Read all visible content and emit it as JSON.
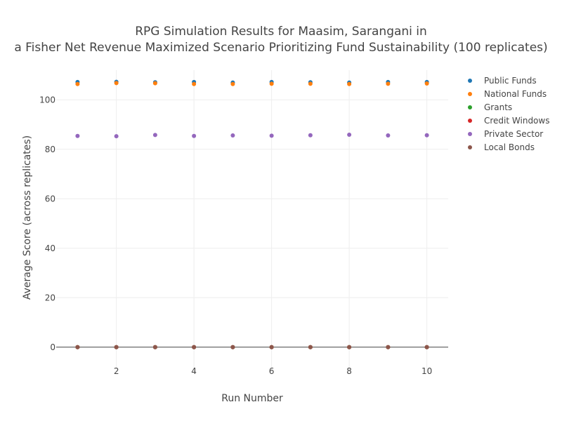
{
  "chart_data": {
    "type": "scatter",
    "title_lines": [
      "RPG Simulation Results for Maasim, Sarangani in",
      "a Fisher Net Revenue Maximized Scenario Prioritizing Fund Sustainability (100 replicates)"
    ],
    "xlabel": "Run Number",
    "ylabel": "Average Score (across replicates)",
    "xlim": [
      0.45,
      10.55
    ],
    "ylim": [
      -10,
      112
    ],
    "x_ticks": [
      2,
      4,
      6,
      8,
      10
    ],
    "y_ticks": [
      0,
      20,
      40,
      60,
      80,
      100
    ],
    "grid": true,
    "legend_position": "top-right, outside plot",
    "x": [
      1,
      2,
      3,
      4,
      5,
      6,
      7,
      8,
      9,
      10
    ],
    "series": [
      {
        "name": "Public Funds",
        "color": "#1f77b4",
        "values": [
          107.2,
          107.3,
          107.1,
          107.2,
          107.0,
          107.2,
          107.1,
          107.0,
          107.2,
          107.2
        ]
      },
      {
        "name": "National Funds",
        "color": "#ff7f0e",
        "values": [
          106.4,
          106.8,
          106.7,
          106.4,
          106.4,
          106.5,
          106.5,
          106.4,
          106.5,
          106.6
        ]
      },
      {
        "name": "Grants",
        "color": "#2ca02c",
        "values": [
          0,
          0,
          0,
          0,
          0,
          0,
          0,
          0,
          0,
          0
        ]
      },
      {
        "name": "Credit Windows",
        "color": "#d62728",
        "values": [
          0,
          0,
          0,
          0,
          0,
          0,
          0,
          0,
          0,
          0
        ]
      },
      {
        "name": "Private Sector",
        "color": "#9467bd",
        "values": [
          85.4,
          85.3,
          85.8,
          85.4,
          85.6,
          85.5,
          85.7,
          85.9,
          85.6,
          85.7
        ]
      },
      {
        "name": "Local Bonds",
        "color": "#8c564b",
        "values": [
          0,
          0,
          0,
          0,
          0,
          0,
          0,
          0,
          0,
          0
        ]
      }
    ]
  }
}
